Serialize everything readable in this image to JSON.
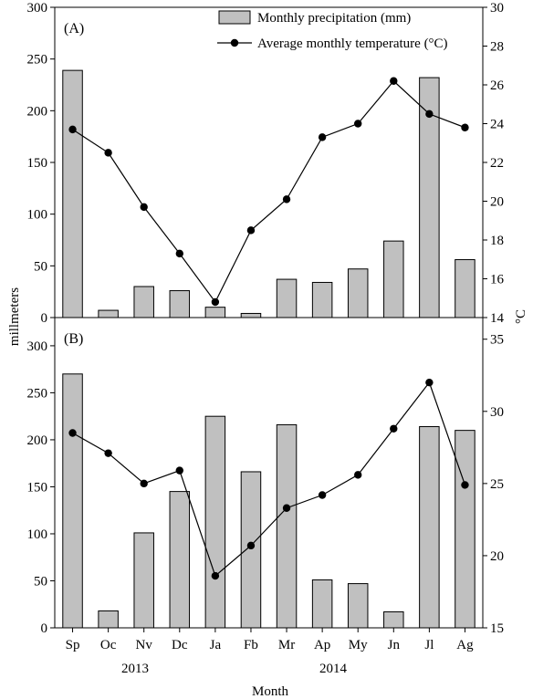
{
  "chart_data": [
    {
      "id": "panel-a",
      "type": "bar",
      "panel_label": "(A)",
      "categories": [
        "Sp",
        "Oc",
        "Nv",
        "Dc",
        "Ja",
        "Fb",
        "Mr",
        "Ap",
        "My",
        "Jn",
        "Jl",
        "Ag"
      ],
      "series": [
        {
          "name": "Monthly precipitation (mm)",
          "type": "bar",
          "axis": "left",
          "color": "#c0c0c0",
          "values": [
            239,
            7,
            30,
            26,
            10,
            4,
            37,
            34,
            47,
            74,
            232,
            56
          ]
        },
        {
          "name": "Average monthly temperature (°C)",
          "type": "line",
          "axis": "right",
          "color": "#000000",
          "values": [
            23.7,
            22.5,
            19.7,
            17.3,
            14.8,
            18.5,
            20.1,
            23.3,
            24.0,
            26.2,
            24.5,
            23.8
          ]
        }
      ],
      "left_axis": {
        "min": 0,
        "max": 300,
        "step": 50,
        "ticks": [
          "0",
          "50",
          "100",
          "150",
          "200",
          "250",
          "300"
        ]
      },
      "right_axis": {
        "min": 14,
        "max": 30,
        "step": 2,
        "ticks": [
          "14",
          "16",
          "18",
          "20",
          "22",
          "24",
          "26",
          "28",
          "30"
        ]
      },
      "legend": "top-right",
      "grid": false
    },
    {
      "id": "panel-b",
      "type": "bar",
      "panel_label": "(B)",
      "categories": [
        "Sp",
        "Oc",
        "Nv",
        "Dc",
        "Ja",
        "Fb",
        "Mr",
        "Ap",
        "My",
        "Jn",
        "Jl",
        "Ag"
      ],
      "series": [
        {
          "type": "bar",
          "axis": "left",
          "color": "#c0c0c0",
          "values": [
            270,
            18,
            101,
            145,
            225,
            166,
            216,
            51,
            47,
            17,
            214,
            210
          ]
        },
        {
          "type": "line",
          "axis": "right",
          "color": "#000000",
          "values": [
            28.5,
            27.1,
            25.0,
            25.9,
            18.6,
            20.7,
            23.3,
            24.2,
            25.6,
            28.8,
            32.0,
            24.9
          ]
        }
      ],
      "left_axis": {
        "min": 0,
        "max": 330,
        "step": 50,
        "ticks": [
          "0",
          "50",
          "100",
          "150",
          "200",
          "250",
          "300"
        ]
      },
      "right_axis": {
        "min": 15,
        "max": 36.5,
        "step": 5,
        "ticks": [
          "15",
          "20",
          "25",
          "30",
          "35"
        ]
      },
      "grid": false
    }
  ],
  "axes_labels": {
    "ylabel_left": "millmeters",
    "ylabel_right": "°C",
    "xlabel": "Month",
    "year_labels": [
      "2013",
      "2014"
    ]
  }
}
